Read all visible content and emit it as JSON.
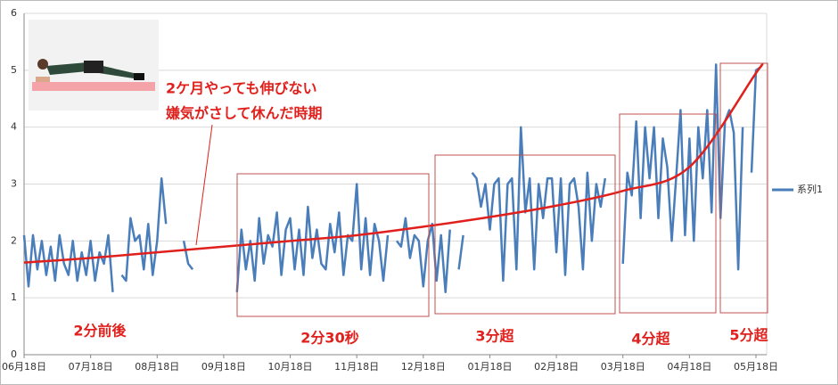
{
  "chart_data": {
    "type": "line",
    "categories": [
      "06月18日",
      null,
      null,
      null,
      null,
      null,
      null,
      null,
      null,
      null,
      null,
      null,
      null,
      null,
      null,
      "07月18日",
      null,
      null,
      null,
      null,
      null,
      null,
      null,
      null,
      null,
      null,
      null,
      null,
      null,
      null,
      "08月18日",
      null,
      null,
      null,
      null,
      null,
      null,
      null,
      null,
      null,
      null,
      null,
      null,
      null,
      null,
      "09月18日",
      null,
      null,
      null,
      null,
      null,
      null,
      null,
      null,
      null,
      null,
      null,
      null,
      null,
      null,
      "10月18日",
      null,
      null,
      null,
      null,
      null,
      null,
      null,
      null,
      null,
      null,
      null,
      null,
      null,
      null,
      "11月18日",
      null,
      null,
      null,
      null,
      null,
      null,
      null,
      null,
      null,
      null,
      null,
      null,
      null,
      null,
      "12月18日",
      null,
      null,
      null,
      null,
      null,
      null,
      null,
      null,
      null,
      null,
      null,
      null,
      null,
      null,
      "01月18日",
      null,
      null,
      null,
      null,
      null,
      null,
      null,
      null,
      null,
      null,
      null,
      null,
      null,
      null,
      "02月18日",
      null,
      null,
      null,
      null,
      null,
      null,
      null,
      null,
      null,
      null,
      null,
      null,
      null,
      null,
      "03月18日",
      null,
      null,
      null,
      null,
      null,
      null,
      null,
      null,
      null,
      null,
      null,
      null,
      null,
      null,
      "04月18日",
      null,
      null,
      null,
      null,
      null,
      null,
      null,
      null,
      null,
      null,
      null,
      null,
      null,
      null,
      "05月18日",
      null
    ],
    "series": [
      {
        "name": "系列1",
        "color": "#4a7ebb",
        "values": [
          2.1,
          1.2,
          2.1,
          1.5,
          2.0,
          1.4,
          1.9,
          1.3,
          2.1,
          1.6,
          1.4,
          2.0,
          1.3,
          1.8,
          1.4,
          2.0,
          1.3,
          1.8,
          1.6,
          2.1,
          1.1,
          null,
          1.4,
          1.3,
          2.4,
          2.0,
          2.1,
          1.5,
          2.3,
          1.4,
          2.0,
          3.1,
          2.3,
          null,
          null,
          null,
          2.0,
          1.6,
          1.5,
          null,
          null,
          1.5,
          null,
          null,
          null,
          null,
          null,
          null,
          1.1,
          2.2,
          1.5,
          2.0,
          1.3,
          2.4,
          1.6,
          2.1,
          1.9,
          2.5,
          1.4,
          2.2,
          2.4,
          1.5,
          2.2,
          1.4,
          2.6,
          1.7,
          2.2,
          1.6,
          1.5,
          2.3,
          1.8,
          2.5,
          1.4,
          2.1,
          2.0,
          3.0,
          1.5,
          2.4,
          1.4,
          2.3,
          2.0,
          1.3,
          2.1,
          null,
          2.0,
          1.9,
          2.4,
          1.7,
          2.1,
          2.0,
          1.2,
          2.0,
          2.3,
          1.3,
          2.1,
          1.1,
          2.2,
          null,
          1.5,
          2.1,
          null,
          3.2,
          3.1,
          2.6,
          3.0,
          2.2,
          3.0,
          3.1,
          1.3,
          3.0,
          3.1,
          1.5,
          4.0,
          2.5,
          3.1,
          1.5,
          3.0,
          2.4,
          3.1,
          3.1,
          1.8,
          3.1,
          1.4,
          3.0,
          3.1,
          2.6,
          1.5,
          3.2,
          2.0,
          3.0,
          2.6,
          3.1,
          null,
          3.0,
          null,
          1.6,
          3.2,
          2.8,
          4.1,
          2.4,
          4.0,
          3.1,
          4.0,
          2.4,
          3.8,
          3.3,
          2.0,
          3.1,
          4.3,
          2.1,
          3.8,
          2.0,
          4.0,
          3.1,
          4.3,
          2.5,
          5.1,
          2.4,
          4.1,
          4.3,
          3.9,
          1.5,
          4.0,
          null,
          3.2,
          5.0,
          5.05
        ]
      }
    ],
    "trendline": {
      "color": "#e0201c",
      "values": [
        1.62,
        null,
        null,
        null,
        null,
        null,
        null,
        null,
        null,
        null,
        null,
        null,
        null,
        null,
        null,
        1.7,
        null,
        null,
        null,
        null,
        null,
        null,
        null,
        null,
        null,
        null,
        null,
        null,
        null,
        null,
        1.8,
        null,
        null,
        null,
        null,
        null,
        null,
        null,
        null,
        null,
        null,
        null,
        null,
        null,
        null,
        1.9,
        null,
        null,
        null,
        null,
        null,
        null,
        null,
        null,
        null,
        null,
        null,
        null,
        null,
        null,
        2.0,
        null,
        null,
        null,
        null,
        null,
        null,
        null,
        null,
        null,
        null,
        null,
        null,
        null,
        null,
        2.1,
        null,
        null,
        null,
        null,
        null,
        null,
        null,
        null,
        null,
        null,
        null,
        null,
        null,
        null,
        2.25,
        null,
        null,
        null,
        null,
        null,
        null,
        null,
        null,
        null,
        null,
        null,
        null,
        null,
        null,
        2.42,
        null,
        null,
        null,
        null,
        null,
        null,
        null,
        null,
        null,
        null,
        null,
        null,
        null,
        null,
        2.62,
        null,
        null,
        null,
        null,
        null,
        null,
        null,
        null,
        null,
        null,
        null,
        null,
        null,
        null,
        2.88,
        null,
        null,
        null,
        null,
        null,
        null,
        null,
        null,
        null,
        null,
        null,
        null,
        null,
        null,
        3.3,
        null,
        null,
        null,
        null,
        null,
        null,
        null,
        null,
        null,
        null,
        null,
        null,
        null,
        null,
        4.95,
        5.05
      ]
    },
    "ylim": [
      0,
      6
    ],
    "yticks": [
      0,
      1,
      2,
      3,
      4,
      5,
      6
    ],
    "grid": true,
    "legend": "right",
    "annotations": {
      "note": [
        "2ケ月やっても伸びない",
        "嫌気がさして休んだ時期"
      ],
      "phases": [
        "2分前後",
        "2分30秒",
        "3分超",
        "4分超",
        "5分超"
      ]
    }
  }
}
